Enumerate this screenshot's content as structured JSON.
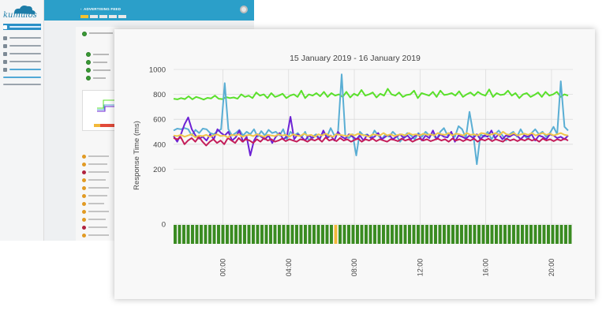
{
  "app": {
    "brand": "kumulos",
    "header_title": "ADVERTISING FEED",
    "back_arrow": "‹",
    "sidebar_icons": [
      "dashboard-icon",
      "apps-icon",
      "settings-icon"
    ]
  },
  "chart_data": {
    "type": "line",
    "title": "15 January 2019 - 16 January 2019",
    "ylabel": "Response Time (ms)",
    "xlabel": "",
    "ylim": [
      0,
      1000
    ],
    "yticks": [
      0,
      200,
      400,
      600,
      800,
      1000
    ],
    "xticks": [
      "00:00",
      "04:00",
      "08:00",
      "12:00",
      "16:00",
      "20:00"
    ],
    "grid": true,
    "x_start_hour": -3.0,
    "x_end_hour": 21.3,
    "series": [
      {
        "color": "#5ae02b",
        "values": [
          765,
          760,
          770,
          762,
          785,
          760,
          780,
          770,
          758,
          772,
          768,
          790,
          765,
          762,
          778,
          770,
          775,
          765,
          800,
          780,
          790,
          770,
          815,
          790,
          800,
          770,
          810,
          780,
          790,
          805,
          770,
          790,
          800,
          780,
          830,
          770,
          800,
          790,
          810,
          785,
          820,
          780,
          810,
          790,
          800,
          780,
          820,
          775,
          805,
          790,
          835,
          790,
          800,
          815,
          775,
          805,
          790,
          845,
          800,
          790,
          815,
          780,
          795,
          800,
          830,
          770,
          810,
          800,
          790,
          820,
          780,
          830,
          795,
          800,
          810,
          790,
          825,
          780,
          800,
          815,
          790,
          820,
          800,
          790,
          840,
          780,
          810,
          795,
          800,
          830,
          790,
          810,
          770,
          800,
          810,
          780,
          795,
          815,
          780,
          820,
          790,
          800,
          820,
          780,
          800,
          790
        ]
      },
      {
        "color": "#5aaed4",
        "values": [
          510,
          525,
          520,
          530,
          520,
          470,
          515,
          490,
          525,
          520,
          490,
          480,
          505,
          520,
          890,
          520,
          470,
          490,
          515,
          470,
          500,
          480,
          520,
          460,
          505,
          470,
          515,
          490,
          500,
          470,
          520,
          440,
          500,
          470,
          490,
          455,
          500,
          430,
          460,
          480,
          445,
          500,
          460,
          530,
          470,
          490,
          960,
          470,
          450,
          480,
          310,
          500,
          470,
          480,
          450,
          510,
          470,
          440,
          480,
          460,
          500,
          470,
          420,
          460,
          490,
          470,
          440,
          490,
          460,
          500,
          470,
          480,
          440,
          500,
          530,
          470,
          490,
          460,
          545,
          520,
          450,
          660,
          490,
          240,
          480,
          460,
          500,
          440,
          480,
          510,
          470,
          430,
          480,
          500,
          460,
          520,
          470,
          440,
          490,
          520,
          480,
          500,
          460,
          490,
          540,
          480,
          905,
          540,
          510
        ]
      },
      {
        "color": "#6d22d4",
        "values": [
          465,
          420,
          480,
          560,
          615,
          520,
          470,
          445,
          460,
          430,
          480,
          440,
          520,
          490,
          470,
          500,
          430,
          455,
          510,
          420,
          460,
          310,
          430,
          480,
          460,
          440,
          470,
          410,
          460,
          490,
          440,
          460,
          620,
          440,
          480,
          460,
          430,
          470,
          450,
          470,
          440,
          510,
          450,
          470,
          430,
          500,
          460,
          445,
          480,
          460,
          440,
          470,
          430,
          475,
          450,
          460,
          490,
          440,
          460,
          475,
          440,
          460,
          480,
          450,
          470,
          440,
          465,
          480,
          430,
          470,
          450,
          510,
          440,
          480,
          460,
          455,
          500,
          420,
          470,
          460,
          445,
          470,
          450,
          480,
          440,
          470,
          460,
          510,
          450,
          480,
          440,
          470,
          460,
          480,
          470,
          440,
          470,
          460,
          480,
          430,
          470,
          460,
          440,
          480,
          470,
          450,
          460,
          440,
          470
        ]
      },
      {
        "color": "#c41e5a",
        "values": [
          450,
          440,
          455,
          400,
          430,
          450,
          420,
          460,
          420,
          390,
          420,
          440,
          410,
          430,
          400,
          450,
          430,
          410,
          450,
          420,
          440,
          430,
          410,
          440,
          420,
          450,
          430,
          440,
          420,
          430,
          445,
          425,
          440,
          430,
          420,
          440,
          435,
          420,
          440,
          430,
          445,
          420,
          455,
          430,
          440,
          425,
          450,
          430,
          440,
          420,
          435,
          445,
          420,
          440,
          430,
          445,
          425,
          440,
          430,
          420,
          440,
          435,
          425,
          445,
          430,
          440,
          420,
          435,
          445,
          430,
          440,
          425,
          435,
          445,
          430,
          440,
          420,
          445,
          430,
          440,
          425,
          440,
          430,
          445,
          420,
          440,
          430,
          445,
          425,
          440,
          430,
          420,
          445,
          430,
          440,
          425,
          440,
          430,
          445,
          430,
          440,
          420,
          445,
          430,
          440,
          425,
          440,
          430,
          445,
          430
        ]
      },
      {
        "color": "#f0c64a",
        "values": [
          470,
          465,
          475,
          460,
          470,
          480,
          455,
          470,
          465,
          475,
          460,
          470,
          480,
          465,
          470,
          455,
          475,
          470,
          480,
          460,
          470,
          475,
          465,
          480,
          470,
          460,
          475,
          470,
          465,
          480,
          470,
          475,
          460,
          480,
          470,
          465,
          485,
          470,
          475,
          460,
          480,
          470,
          485,
          470,
          460,
          480,
          475,
          470,
          465,
          480,
          470,
          485,
          475,
          470,
          460,
          480,
          475,
          470,
          490,
          470,
          480,
          465,
          475,
          480,
          470,
          490,
          475,
          480,
          470,
          485,
          475,
          480,
          470,
          490,
          480,
          475,
          490,
          470,
          485,
          480,
          470,
          490,
          475,
          480,
          470,
          490,
          485,
          475,
          480,
          490,
          470,
          500,
          480,
          475,
          490,
          470,
          480,
          485,
          475,
          490,
          470,
          480,
          490,
          475,
          485,
          470,
          480,
          490,
          475,
          470
        ]
      }
    ],
    "status_bars": {
      "count": 92,
      "ok_color": "#3a8b21",
      "warn_color": "#f2b83a",
      "warn_index": 37
    }
  }
}
